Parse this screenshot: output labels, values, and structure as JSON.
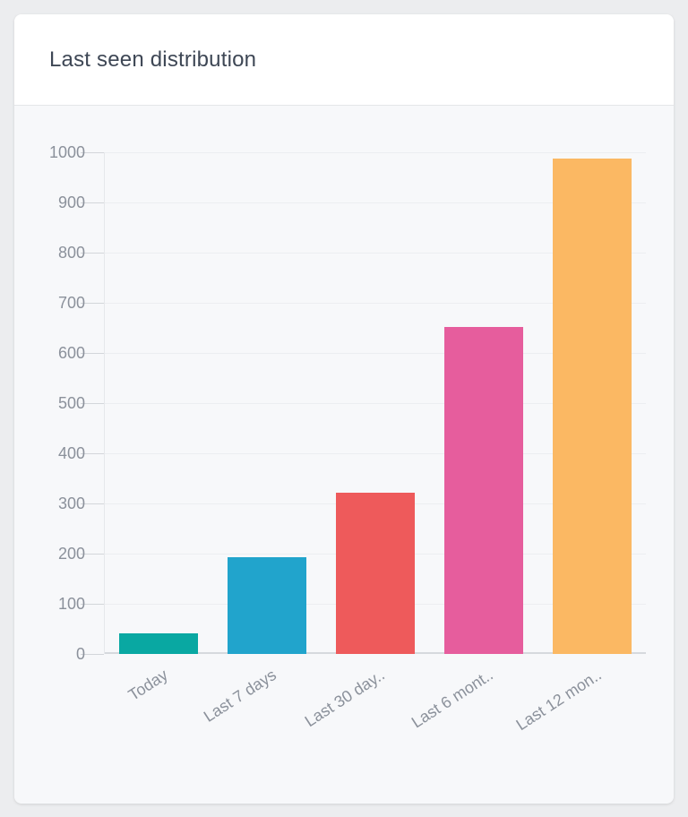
{
  "card": {
    "title": "Last seen distribution"
  },
  "chart_data": {
    "type": "bar",
    "title": "Last seen distribution",
    "categories": [
      "Today",
      "Last 7 days",
      "Last 30 day..",
      "Last 6 mont..",
      "Last 12 mon.."
    ],
    "values": [
      41,
      193,
      321,
      652,
      988
    ],
    "bar_colors": [
      "#09a8a2",
      "#21a4cc",
      "#ee5a5b",
      "#e65d9d",
      "#fbb863"
    ],
    "xlabel": "",
    "ylabel": "",
    "ylim": [
      0,
      1000
    ],
    "yticks": [
      0,
      100,
      200,
      300,
      400,
      500,
      600,
      700,
      800,
      900,
      1000
    ],
    "grid": "horizontal",
    "legend": "none",
    "x_tick_rotation_deg": -33
  },
  "theme": {
    "page_bg": "#ecedef",
    "card_bg": "#ffffff",
    "chart_bg": "#f7f8fa",
    "divider": "#e4e6e9",
    "title_color": "#3e4755",
    "axis_text_color": "#8b919b",
    "gridline_color": "#eceef1",
    "baseline_color": "#d6d9dd",
    "tick_color": "#d3d6da",
    "axis_line_color": "#e6e8eb"
  }
}
